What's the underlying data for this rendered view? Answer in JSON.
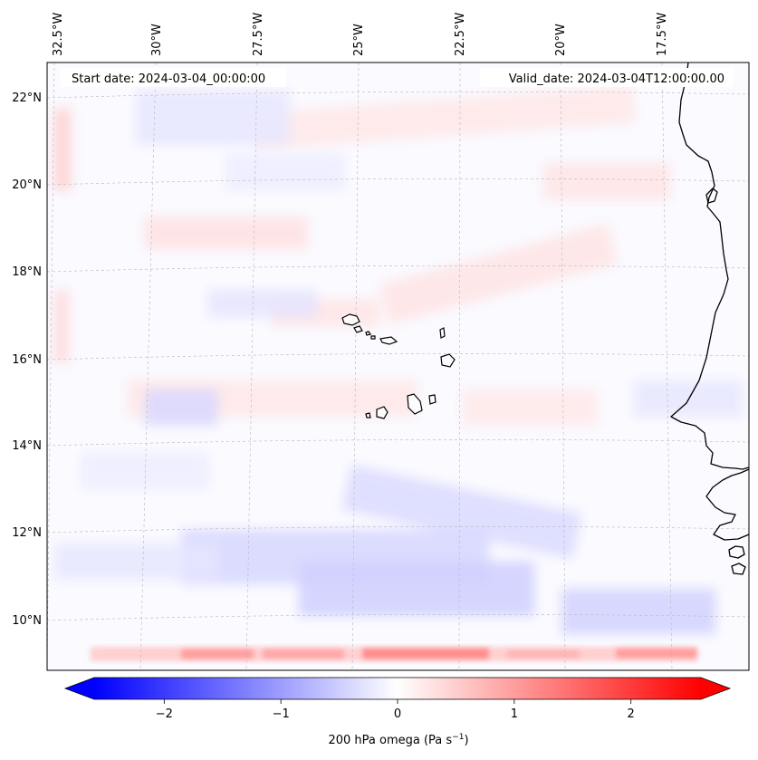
{
  "header": {
    "start_date": "Start date: 2024-03-04_00:00:00",
    "valid_date": "Valid_date: 2024-03-04T12:00:00.00"
  },
  "map": {
    "region": "Eastern tropical North Atlantic / Cape Verde",
    "lon_labels": [
      "32.5°W",
      "30°W",
      "27.5°W",
      "25°W",
      "22.5°W",
      "20°W",
      "17.5°W"
    ],
    "lat_labels": [
      "22°N",
      "20°N",
      "18°N",
      "16°N",
      "14°N",
      "12°N",
      "10°N"
    ],
    "field": "200 hPa omega",
    "colors": {
      "negative": "#0000ff",
      "zero": "#ffffff",
      "positive": "#ff0000"
    }
  },
  "colorbar": {
    "ticks": [
      -2,
      -1,
      0,
      1,
      2
    ],
    "tick_labels": [
      "−2",
      "−1",
      "0",
      "1",
      "2"
    ],
    "range": [
      -2.6,
      2.6
    ],
    "label_main": "200 hPa omega (Pa s",
    "label_sup": "−1",
    "label_end": ")",
    "cmap": "bwr"
  }
}
